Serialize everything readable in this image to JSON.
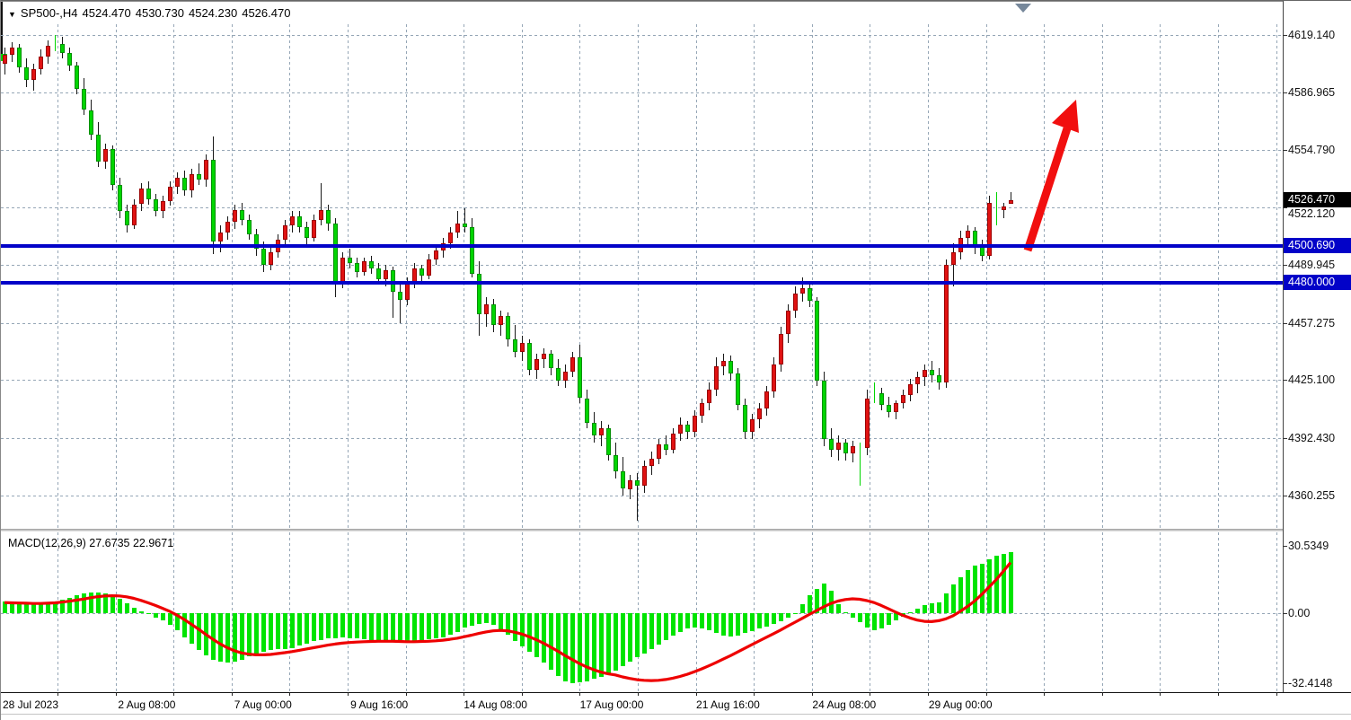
{
  "header": {
    "marker": "▼",
    "symbol_period": "SP500-,H4",
    "open": "4524.470",
    "high": "4530.730",
    "low": "4524.230",
    "close": "4526.470"
  },
  "macd_panel": {
    "label": "MACD(12,26,9) 27.6735 22.9671",
    "axis_labels": [
      "30.5349",
      "0.00",
      "-32.4148"
    ]
  },
  "price_axis": {
    "labels": [
      "4619.140",
      "4586.965",
      "4554.790",
      "4522.120",
      "4489.945",
      "4457.275",
      "4425.100",
      "4392.430",
      "4360.255"
    ],
    "current_price_badge": "4526.470",
    "level_badges": [
      "4500.690",
      "4480.000"
    ]
  },
  "time_axis": {
    "labels": [
      "28 Jul 2023",
      "2 Aug 08:00",
      "7 Aug 00:00",
      "9 Aug 16:00",
      "14 Aug 08:00",
      "17 Aug 00:00",
      "21 Aug 16:00",
      "24 Aug 08:00",
      "29 Aug 00:00"
    ]
  },
  "colors": {
    "bull_body": "#e01212",
    "bull_border": "#9b0000",
    "bear_body": "#00d500",
    "bear_border": "#008f00",
    "doji": "#00d500",
    "wick": "#1a1a1a",
    "grid": "#95a6b6",
    "level_line": "#0202c8",
    "current_price_line": "#8c8c8c",
    "badge_black": "#000000",
    "badge_blue": "#0202c8",
    "macd_histogram": "#00e400",
    "macd_signal": "#ee0000",
    "arrow": "#f10f0f",
    "top_marker": "#76879a"
  },
  "annotations": {
    "arrow": {
      "shape": "up-right-arrow",
      "from_price": 4500.7,
      "to_price": 4585.0
    },
    "top_marker": {
      "shape": "down-triangle",
      "note": "gray triangle above last candle"
    }
  },
  "chart_data": [
    {
      "type": "candlestick",
      "title": "SP500- H4",
      "note": "inverted colors: bullish candles red, bearish candles green",
      "x_labels": [
        "28 Jul 2023",
        "2 Aug 08:00",
        "7 Aug 00:00",
        "9 Aug 16:00",
        "14 Aug 08:00",
        "17 Aug 00:00",
        "21 Aug 16:00",
        "24 Aug 08:00",
        "29 Aug 00:00"
      ],
      "ylim": [
        4340.7,
        4629.9
      ],
      "y_ticks": [
        4619.14,
        4586.965,
        4554.79,
        4522.12,
        4489.945,
        4457.275,
        4425.1,
        4392.43,
        4360.255
      ],
      "horizontal_levels": [
        4500.69,
        4480.0
      ],
      "current_price": 4526.47,
      "last_candle_ohlc": [
        4524.47,
        4530.73,
        4524.23,
        4526.47
      ],
      "candles": [
        [
          4603,
          4612,
          4597,
          4608
        ],
        [
          4608,
          4615,
          4604,
          4612
        ],
        [
          4612,
          4614,
          4598,
          4601
        ],
        [
          4601,
          4606,
          4590,
          4594
        ],
        [
          4594,
          4603,
          4588,
          4600
        ],
        [
          4600,
          4611,
          4597,
          4607
        ],
        [
          4607,
          4616,
          4603,
          4613
        ],
        [
          4614,
          4619.1,
          4610,
          4614.5
        ],
        [
          4614,
          4618,
          4606,
          4609
        ],
        [
          4609,
          4612,
          4599,
          4602
        ],
        [
          4602,
          4604,
          4586,
          4589
        ],
        [
          4589,
          4595,
          4574,
          4577
        ],
        [
          4577,
          4583,
          4560,
          4563
        ],
        [
          4563,
          4570,
          4545,
          4548
        ],
        [
          4548,
          4558,
          4544,
          4555
        ],
        [
          4555,
          4557,
          4532,
          4535
        ],
        [
          4535,
          4539,
          4516,
          4520
        ],
        [
          4520,
          4524,
          4508,
          4512
        ],
        [
          4512,
          4527,
          4510,
          4524
        ],
        [
          4524,
          4536,
          4520,
          4533
        ],
        [
          4533,
          4537,
          4524,
          4527
        ],
        [
          4527,
          4530,
          4517,
          4520
        ],
        [
          4520,
          4529,
          4516,
          4526
        ],
        [
          4526,
          4537,
          4523,
          4534
        ],
        [
          4534,
          4542,
          4530,
          4539
        ],
        [
          4539,
          4543,
          4529,
          4532
        ],
        [
          4532,
          4544,
          4528,
          4541
        ],
        [
          4541,
          4547,
          4535,
          4538
        ],
        [
          4538,
          4552,
          4534,
          4549
        ],
        [
          4549,
          4562,
          4496,
          4503
        ],
        [
          4503,
          4512,
          4497,
          4508
        ],
        [
          4508,
          4517,
          4504,
          4514
        ],
        [
          4514,
          4524,
          4510,
          4521
        ],
        [
          4521,
          4525,
          4512,
          4515
        ],
        [
          4515,
          4518,
          4504,
          4507
        ],
        [
          4507,
          4510,
          4495,
          4499
        ],
        [
          4499,
          4503,
          4486,
          4490
        ],
        [
          4490,
          4500,
          4487,
          4497
        ],
        [
          4497,
          4507,
          4494,
          4504
        ],
        [
          4504,
          4515,
          4501,
          4512
        ],
        [
          4512,
          4520,
          4508,
          4517
        ],
        [
          4517,
          4520,
          4508,
          4511
        ],
        [
          4511,
          4514,
          4501,
          4505
        ],
        [
          4505,
          4518,
          4503,
          4515
        ],
        [
          4515,
          4536,
          4512,
          4521
        ],
        [
          4521,
          4524,
          4509,
          4513
        ],
        [
          4513,
          4516,
          4472,
          4480
        ],
        [
          4480,
          4497,
          4477,
          4494
        ],
        [
          4494,
          4499,
          4488,
          4491
        ],
        [
          4491,
          4494,
          4483,
          4486
        ],
        [
          4486,
          4494,
          4484,
          4492
        ],
        [
          4492,
          4495,
          4485,
          4488
        ],
        [
          4488,
          4491,
          4479,
          4482
        ],
        [
          4482,
          4490,
          4478,
          4487
        ],
        [
          4487,
          4489,
          4460,
          4475
        ],
        [
          4475,
          4480,
          4457,
          4470
        ],
        [
          4470,
          4483,
          4467,
          4480
        ],
        [
          4480,
          4491,
          4477,
          4488
        ],
        [
          4488,
          4490,
          4480,
          4484
        ],
        [
          4484,
          4496,
          4482,
          4493
        ],
        [
          4493,
          4500,
          4490,
          4498
        ],
        [
          4498,
          4505,
          4494,
          4502
        ],
        [
          4502,
          4511,
          4499,
          4508
        ],
        [
          4508,
          4520,
          4505,
          4513
        ],
        [
          4513,
          4522,
          4508,
          4511
        ],
        [
          4511,
          4516,
          4483,
          4485
        ],
        [
          4485,
          4492,
          4450,
          4462
        ],
        [
          4462,
          4472,
          4455,
          4468
        ],
        [
          4468,
          4471,
          4452,
          4456
        ],
        [
          4456,
          4464,
          4450,
          4461
        ],
        [
          4461,
          4463,
          4444,
          4448
        ],
        [
          4448,
          4456,
          4438,
          4441
        ],
        [
          4441,
          4450,
          4436,
          4446
        ],
        [
          4446,
          4448,
          4428,
          4431
        ],
        [
          4431,
          4440,
          4426,
          4437
        ],
        [
          4437,
          4443,
          4432,
          4440
        ],
        [
          4440,
          4442,
          4428,
          4432
        ],
        [
          4432,
          4437,
          4422,
          4425
        ],
        [
          4425,
          4434,
          4421,
          4430
        ],
        [
          4430,
          4441,
          4427,
          4438
        ],
        [
          4438,
          4445,
          4412,
          4415
        ],
        [
          4415,
          4420,
          4398,
          4401
        ],
        [
          4401,
          4407,
          4390,
          4394
        ],
        [
          4394,
          4402,
          4388,
          4398
        ],
        [
          4398,
          4400,
          4380,
          4383
        ],
        [
          4383,
          4390,
          4370,
          4374
        ],
        [
          4374,
          4382,
          4360,
          4364
        ],
        [
          4364,
          4372,
          4358,
          4369
        ],
        [
          4369,
          4373,
          4346,
          4366
        ],
        [
          4366,
          4380,
          4362,
          4377
        ],
        [
          4377,
          4385,
          4372,
          4381
        ],
        [
          4381,
          4392,
          4378,
          4389
        ],
        [
          4389,
          4394,
          4383,
          4386
        ],
        [
          4386,
          4398,
          4384,
          4395
        ],
        [
          4395,
          4404,
          4391,
          4400
        ],
        [
          4400,
          4402,
          4392,
          4396
        ],
        [
          4396,
          4408,
          4393,
          4405
        ],
        [
          4405,
          4415,
          4401,
          4412
        ],
        [
          4412,
          4424,
          4408,
          4420
        ],
        [
          4420,
          4438,
          4416,
          4433
        ],
        [
          4433,
          4440,
          4428,
          4436
        ],
        [
          4436,
          4439,
          4425,
          4429
        ],
        [
          4429,
          4432,
          4408,
          4411
        ],
        [
          4411,
          4415,
          4392,
          4396
        ],
        [
          4396,
          4406,
          4392,
          4403
        ],
        [
          4403,
          4412,
          4398,
          4409
        ],
        [
          4409,
          4422,
          4405,
          4419
        ],
        [
          4419,
          4438,
          4415,
          4434
        ],
        [
          4434,
          4455,
          4430,
          4451
        ],
        [
          4451,
          4468,
          4446,
          4464
        ],
        [
          4464,
          4478,
          4460,
          4474
        ],
        [
          4474,
          4483,
          4469,
          4477
        ],
        [
          4477,
          4480,
          4466,
          4470
        ],
        [
          4470,
          4472,
          4422,
          4425
        ],
        [
          4425,
          4430,
          4388,
          4392
        ],
        [
          4392,
          4398,
          4382,
          4386
        ],
        [
          4386,
          4394,
          4380,
          4390
        ],
        [
          4390,
          4392,
          4380,
          4384
        ],
        [
          4384,
          4391,
          4379,
          4388
        ],
        [
          4388,
          4390,
          4366,
          4387
        ],
        [
          4387,
          4420,
          4383,
          4415
        ],
        [
          4418,
          4424,
          4412,
          4418
        ],
        [
          4418,
          4421,
          4408,
          4411
        ],
        [
          4411,
          4416,
          4404,
          4407
        ],
        [
          4407,
          4414,
          4403,
          4412
        ],
        [
          4412,
          4420,
          4409,
          4417
        ],
        [
          4417,
          4426,
          4413,
          4423
        ],
        [
          4423,
          4430,
          4418,
          4427
        ],
        [
          4427,
          4434,
          4422,
          4431
        ],
        [
          4431,
          4436,
          4424,
          4428
        ],
        [
          4428,
          4432,
          4420,
          4424
        ],
        [
          4424,
          4493,
          4421,
          4490
        ],
        [
          4490,
          4502,
          4478,
          4497
        ],
        [
          4497,
          4509,
          4493,
          4505
        ],
        [
          4505,
          4512,
          4500,
          4509
        ],
        [
          4509,
          4511,
          4496,
          4500
        ],
        [
          4500,
          4504,
          4492,
          4495
        ],
        [
          4495,
          4529,
          4493,
          4525
        ],
        [
          4522,
          4531,
          4512,
          4521
        ],
        [
          4521,
          4525,
          4516,
          4523
        ],
        [
          4524.47,
          4530.73,
          4524.23,
          4526.47
        ]
      ]
    },
    {
      "type": "bar",
      "name": "MACD histogram (12,26,9)",
      "current_value": 27.6735,
      "ylim": [
        -32.4148,
        30.5349
      ],
      "values": [
        5.5,
        5.0,
        4.5,
        4.2,
        4.0,
        4.3,
        4.8,
        5.2,
        6.0,
        7.0,
        8.0,
        8.8,
        9.3,
        9.5,
        9.0,
        8.0,
        6.5,
        4.5,
        2.5,
        1.0,
        -0.5,
        -2,
        -3.5,
        -5.5,
        -8,
        -11,
        -14,
        -17,
        -19.5,
        -21.5,
        -22.5,
        -23,
        -22.5,
        -21.5,
        -20,
        -19,
        -18,
        -17.2,
        -16.8,
        -16.5,
        -16,
        -15,
        -14,
        -13,
        -12.3,
        -11.8,
        -11.5,
        -11.3,
        -11.5,
        -11.8,
        -12,
        -12.3,
        -12.6,
        -12.9,
        -13.2,
        -13.4,
        -13.5,
        -13.3,
        -12.8,
        -12.2,
        -11.6,
        -11,
        -10,
        -8.5,
        -6.5,
        -6,
        -5,
        -4.5,
        -5.5,
        -7.5,
        -10,
        -13,
        -15.5,
        -18,
        -20.5,
        -23,
        -26,
        -29,
        -31.5,
        -32.4,
        -32,
        -31.5,
        -30.5,
        -29.5,
        -28,
        -26.5,
        -24.5,
        -22.5,
        -20.5,
        -18.5,
        -16.5,
        -14.5,
        -12.5,
        -10.5,
        -8.8,
        -7.2,
        -6.5,
        -7.0,
        -8.0,
        -9.0,
        -10.2,
        -10.8,
        -10.2,
        -9.2,
        -8.2,
        -7.2,
        -6.2,
        -5.0,
        -3.8,
        -2.2,
        -0.5,
        4,
        8,
        11,
        13.5,
        10,
        4,
        0.5,
        -2,
        -4,
        -6.5,
        -8,
        -7,
        -5.5,
        -3.5,
        -1.5,
        0.5,
        2,
        3.5,
        4.5,
        5,
        9,
        13,
        16.5,
        19.5,
        21.5,
        22.5,
        24.5,
        26,
        27,
        27.6735
      ]
    },
    {
      "type": "line",
      "name": "MACD signal",
      "current_value": 22.9671,
      "values": [
        4.8,
        4.7,
        4.6,
        4.5,
        4.4,
        4.4,
        4.5,
        4.7,
        5.0,
        5.4,
        5.9,
        6.4,
        7.0,
        7.5,
        7.8,
        7.9,
        7.8,
        7.4,
        6.7,
        5.8,
        4.7,
        3.5,
        2.2,
        0.8,
        -0.9,
        -2.9,
        -5.1,
        -7.4,
        -9.8,
        -12.1,
        -14.2,
        -16.0,
        -17.4,
        -18.4,
        -19.0,
        -19.3,
        -19.3,
        -19.1,
        -18.7,
        -18.3,
        -17.8,
        -17.2,
        -16.6,
        -16.0,
        -15.4,
        -14.8,
        -14.3,
        -13.9,
        -13.6,
        -13.4,
        -13.2,
        -13.1,
        -13.0,
        -13.0,
        -13.0,
        -13.1,
        -13.2,
        -13.2,
        -13.1,
        -13.0,
        -12.8,
        -12.5,
        -12.1,
        -11.6,
        -10.9,
        -10.2,
        -9.4,
        -8.7,
        -8.2,
        -8.0,
        -8.2,
        -8.8,
        -9.7,
        -10.9,
        -12.3,
        -13.9,
        -15.7,
        -17.6,
        -19.6,
        -21.5,
        -23.3,
        -24.9,
        -26.2,
        -27.3,
        -28.1,
        -28.6,
        -29.5,
        -30.2,
        -30.8,
        -31.1,
        -31.2,
        -31.1,
        -30.7,
        -30.1,
        -29.3,
        -28.3,
        -27.1,
        -25.8,
        -24.4,
        -22.9,
        -21.3,
        -19.7,
        -18.0,
        -16.3,
        -14.6,
        -12.9,
        -11.2,
        -9.5,
        -7.8,
        -6.0,
        -4.2,
        -2.4,
        -0.6,
        1.2,
        2.9,
        4.4,
        5.5,
        6.2,
        6.5,
        6.3,
        5.7,
        4.8,
        3.5,
        2.0,
        0.5,
        -1.0,
        -2.2,
        -3.2,
        -3.8,
        -3.9,
        -3.5,
        -2.6,
        -1.2,
        0.8,
        3.0,
        5.5,
        8.5,
        11.8,
        15.2,
        19.0,
        22.9671
      ]
    }
  ]
}
